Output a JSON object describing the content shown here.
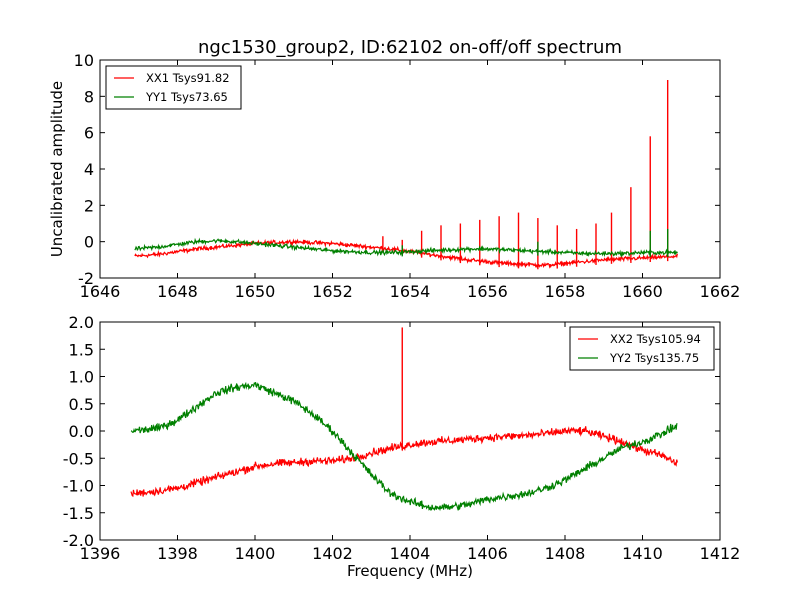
{
  "chart_data": [
    {
      "type": "line",
      "title": "ngc1530_group2, ID:62102 on-off/off spectrum",
      "xlabel": "",
      "ylabel": "Uncalibrated amplitude",
      "xlim": [
        1646,
        1662
      ],
      "ylim": [
        -2,
        10
      ],
      "xticks": [
        1646,
        1648,
        1650,
        1652,
        1654,
        1656,
        1658,
        1660,
        1662
      ],
      "yticks": [
        -2,
        0,
        2,
        4,
        6,
        8,
        10
      ],
      "grid": false,
      "legend": "top-left",
      "series": [
        {
          "name": "XX1 Tsys91.82",
          "color": "#ff0000",
          "x": [
            1646.9,
            1647.5,
            1648.0,
            1648.5,
            1649.0,
            1649.5,
            1650.0,
            1650.5,
            1651.0,
            1651.5,
            1652.0,
            1652.5,
            1653.0,
            1653.5,
            1654.0,
            1654.5,
            1655.0,
            1655.5,
            1656.0,
            1656.5,
            1657.0,
            1657.5,
            1658.0,
            1658.5,
            1659.0,
            1659.5,
            1660.0,
            1660.5,
            1660.9
          ],
          "y": [
            -0.8,
            -0.7,
            -0.55,
            -0.4,
            -0.3,
            -0.2,
            -0.1,
            -0.05,
            0.0,
            -0.05,
            -0.1,
            -0.2,
            -0.3,
            -0.4,
            -0.55,
            -0.7,
            -0.85,
            -1.0,
            -1.1,
            -1.2,
            -1.25,
            -1.3,
            -1.2,
            -1.1,
            -1.0,
            -0.95,
            -0.9,
            -0.85,
            -0.8
          ],
          "spikes": [
            {
              "x": 1653.3,
              "y": 0.3
            },
            {
              "x": 1653.8,
              "y": 0.1
            },
            {
              "x": 1654.3,
              "y": 0.6
            },
            {
              "x": 1654.8,
              "y": 0.9
            },
            {
              "x": 1655.3,
              "y": 1.0
            },
            {
              "x": 1655.8,
              "y": 1.2
            },
            {
              "x": 1656.3,
              "y": 1.4
            },
            {
              "x": 1656.8,
              "y": 1.6
            },
            {
              "x": 1657.3,
              "y": 1.3
            },
            {
              "x": 1657.8,
              "y": 0.9
            },
            {
              "x": 1658.3,
              "y": 0.7
            },
            {
              "x": 1658.8,
              "y": 1.0
            },
            {
              "x": 1659.2,
              "y": 1.6
            },
            {
              "x": 1659.7,
              "y": 3.0
            },
            {
              "x": 1660.2,
              "y": 5.8
            },
            {
              "x": 1660.65,
              "y": 8.9
            }
          ]
        },
        {
          "name": "YY1 Tsys73.65",
          "color": "#008000",
          "x": [
            1646.9,
            1647.5,
            1648.0,
            1648.5,
            1649.0,
            1649.5,
            1650.0,
            1650.5,
            1651.0,
            1651.5,
            1652.0,
            1652.5,
            1653.0,
            1653.5,
            1654.0,
            1654.5,
            1655.0,
            1655.5,
            1656.0,
            1656.5,
            1657.0,
            1657.5,
            1658.0,
            1658.5,
            1659.0,
            1659.5,
            1660.0,
            1660.5,
            1660.9
          ],
          "y": [
            -0.4,
            -0.3,
            -0.15,
            0.0,
            0.05,
            0.0,
            -0.1,
            -0.2,
            -0.3,
            -0.4,
            -0.5,
            -0.55,
            -0.6,
            -0.6,
            -0.55,
            -0.5,
            -0.45,
            -0.4,
            -0.4,
            -0.45,
            -0.5,
            -0.55,
            -0.6,
            -0.65,
            -0.65,
            -0.65,
            -0.6,
            -0.6,
            -0.6
          ],
          "spikes": [
            {
              "x": 1653.8,
              "y": -0.2
            },
            {
              "x": 1657.3,
              "y": 0.0
            },
            {
              "x": 1660.2,
              "y": 0.6
            },
            {
              "x": 1660.65,
              "y": 0.7
            }
          ]
        }
      ]
    },
    {
      "type": "line",
      "title": "",
      "xlabel": "Frequency (MHz)",
      "ylabel": "",
      "xlim": [
        1396,
        1412
      ],
      "ylim": [
        -2.0,
        2.0
      ],
      "xticks": [
        1396,
        1398,
        1400,
        1402,
        1404,
        1406,
        1408,
        1410,
        1412
      ],
      "yticks": [
        -2.0,
        -1.5,
        -1.0,
        -0.5,
        0.0,
        0.5,
        1.0,
        1.5,
        2.0
      ],
      "grid": false,
      "legend": "top-right",
      "series": [
        {
          "name": "XX2 Tsys105.94",
          "color": "#ff0000",
          "x": [
            1396.8,
            1397.5,
            1398.0,
            1398.5,
            1399.0,
            1399.5,
            1400.0,
            1400.5,
            1401.0,
            1401.5,
            1402.0,
            1402.5,
            1403.0,
            1403.5,
            1404.0,
            1404.5,
            1405.0,
            1405.5,
            1406.0,
            1406.5,
            1407.0,
            1407.5,
            1408.0,
            1408.5,
            1409.0,
            1409.5,
            1410.0,
            1410.5,
            1410.9
          ],
          "y": [
            -1.15,
            -1.1,
            -1.05,
            -0.95,
            -0.85,
            -0.75,
            -0.65,
            -0.6,
            -0.58,
            -0.55,
            -0.55,
            -0.5,
            -0.4,
            -0.32,
            -0.25,
            -0.2,
            -0.18,
            -0.15,
            -0.12,
            -0.1,
            -0.08,
            -0.05,
            0.0,
            0.0,
            -0.1,
            -0.2,
            -0.35,
            -0.45,
            -0.6
          ],
          "spikes": [
            {
              "x": 1403.8,
              "y": 1.9
            }
          ]
        },
        {
          "name": "YY2 Tsys135.75",
          "color": "#008000",
          "x": [
            1396.8,
            1397.5,
            1398.0,
            1398.5,
            1399.0,
            1399.5,
            1400.0,
            1400.5,
            1401.0,
            1401.5,
            1402.0,
            1402.5,
            1403.0,
            1403.5,
            1404.0,
            1404.5,
            1405.0,
            1405.5,
            1406.0,
            1406.5,
            1407.0,
            1407.5,
            1408.0,
            1408.5,
            1409.0,
            1409.5,
            1410.0,
            1410.5,
            1410.9
          ],
          "y": [
            0.0,
            0.05,
            0.2,
            0.45,
            0.7,
            0.8,
            0.85,
            0.7,
            0.55,
            0.3,
            0.0,
            -0.4,
            -0.8,
            -1.15,
            -1.3,
            -1.4,
            -1.4,
            -1.35,
            -1.25,
            -1.2,
            -1.15,
            -1.05,
            -0.9,
            -0.7,
            -0.5,
            -0.3,
            -0.2,
            -0.05,
            0.1
          ],
          "spikes": []
        }
      ]
    }
  ]
}
